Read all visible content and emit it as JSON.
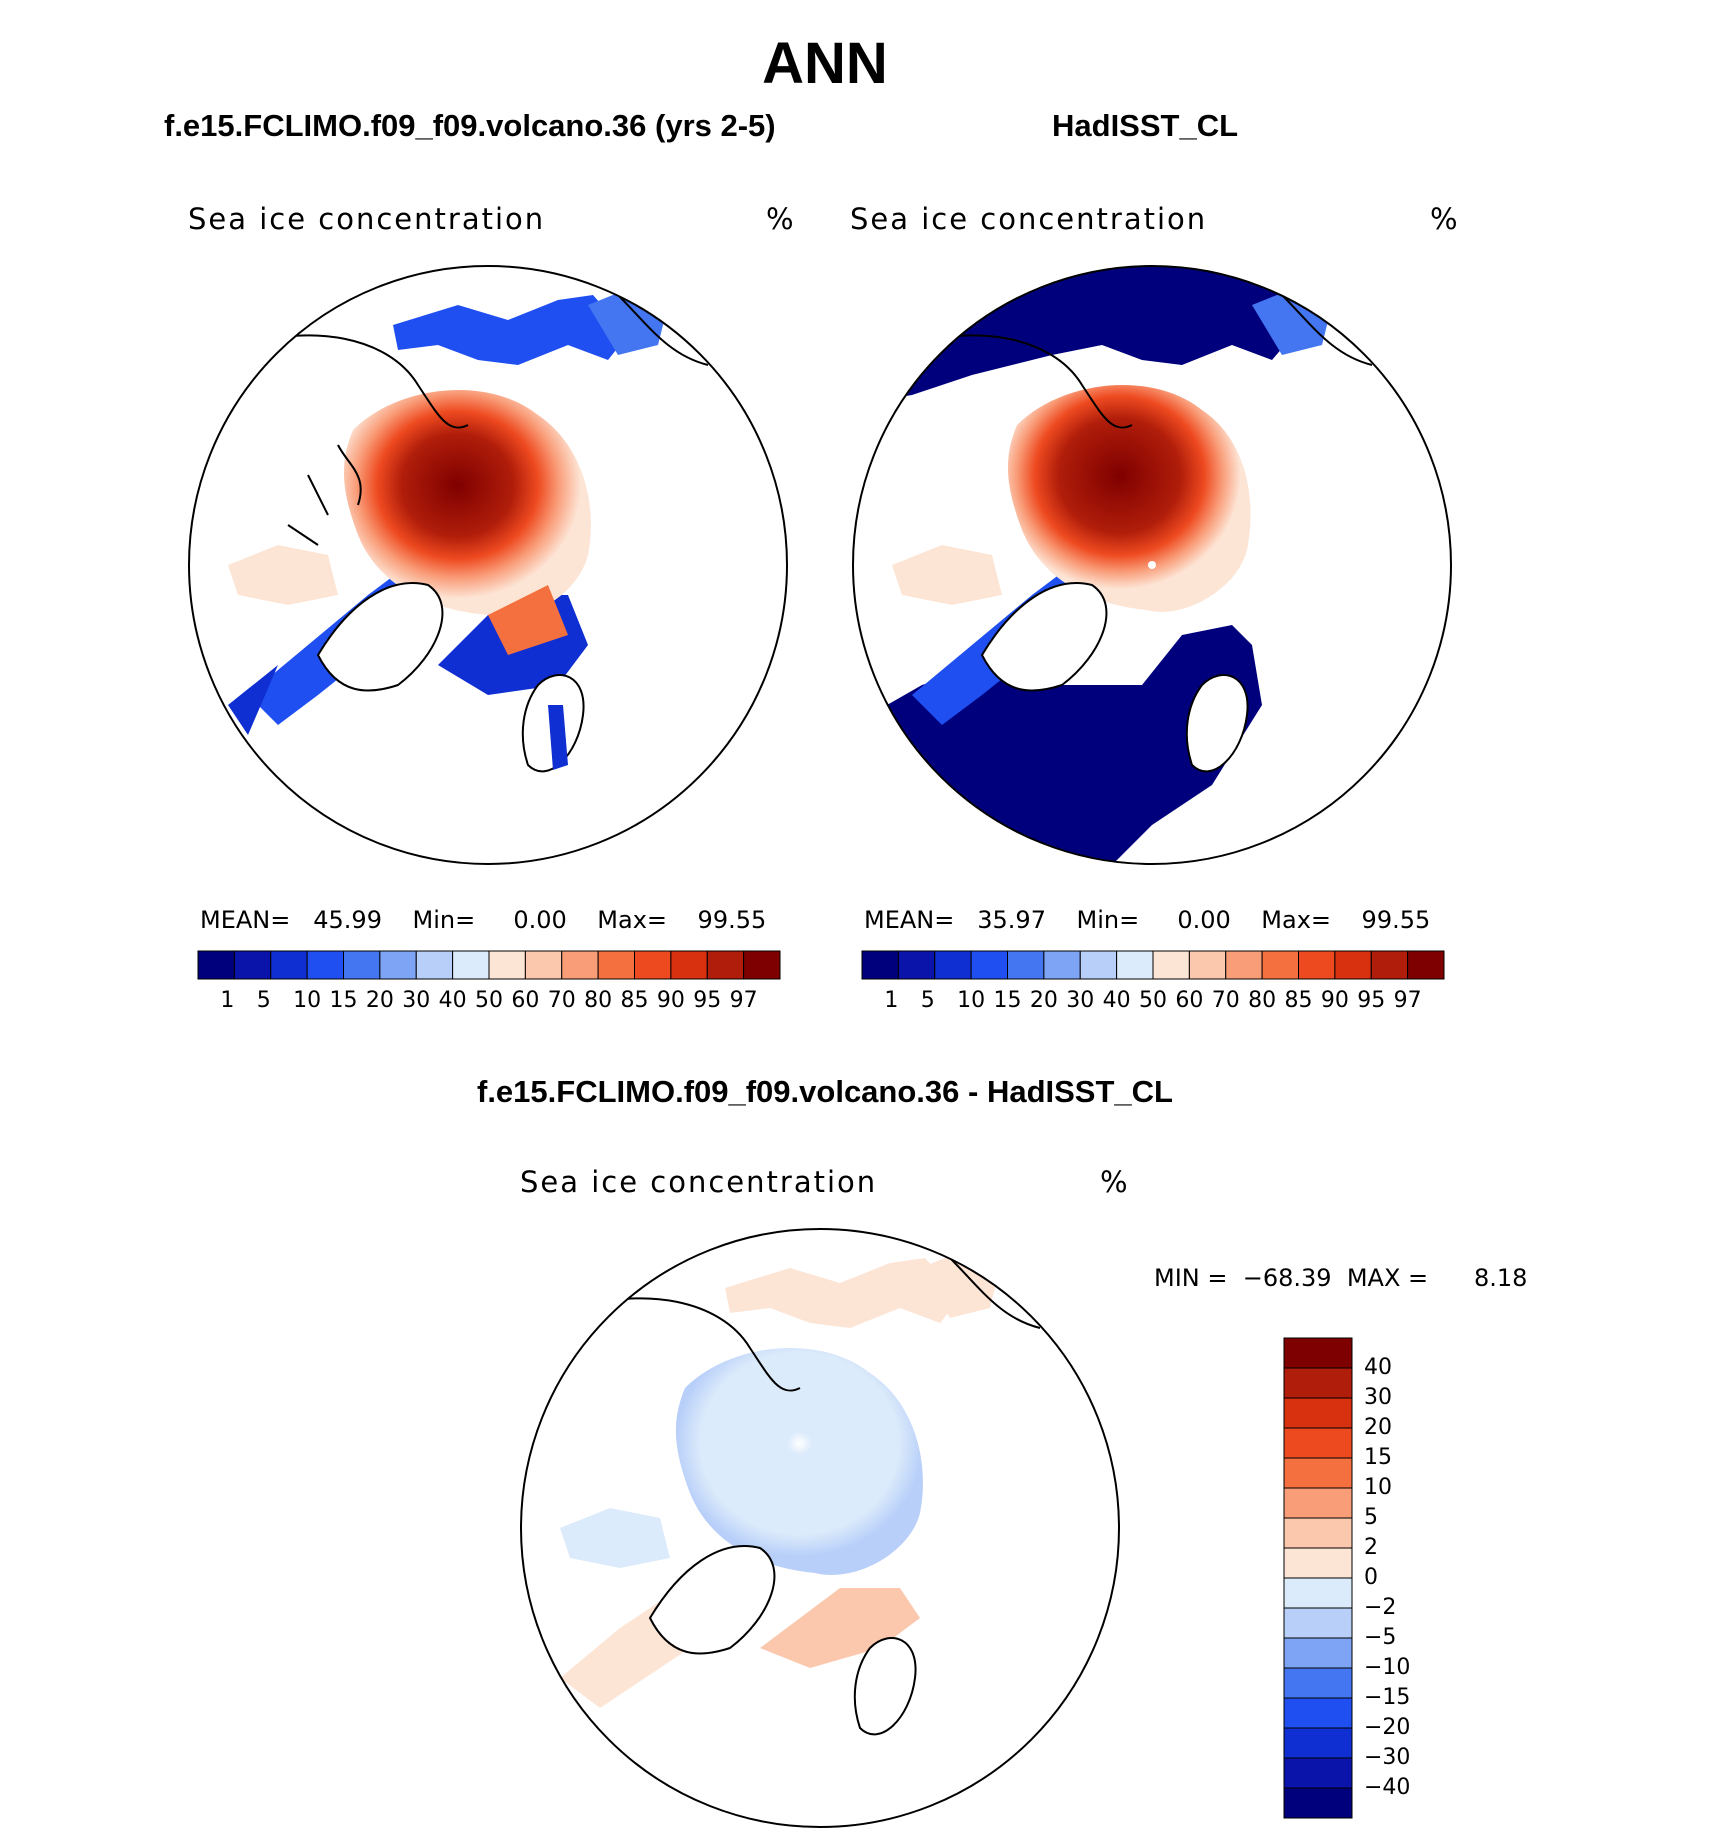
{
  "page_title": "ANN",
  "chart_data": [
    {
      "type": "heatmap",
      "projection": "north polar stereographic",
      "case_title": "f.e15.FCLIMO.f09_f09.volcano.36 (yrs 2-5)",
      "variable": "Sea ice concentration",
      "units": "%",
      "stats": {
        "mean_label": "MEAN=",
        "mean": "45.99",
        "min_label": "Min=",
        "min": "0.00",
        "max_label": "Max=",
        "max": "99.55"
      },
      "colorbar_levels": [
        "1",
        "5",
        "10",
        "15",
        "20",
        "30",
        "40",
        "50",
        "60",
        "70",
        "80",
        "85",
        "90",
        "95",
        "97"
      ],
      "central_arctic_value": 99.55,
      "marginal_sea_ice": "low concentration bands near edge"
    },
    {
      "type": "heatmap",
      "projection": "north polar stereographic",
      "case_title": "HadISST_CL",
      "variable": "Sea ice concentration",
      "units": "%",
      "stats": {
        "mean_label": "MEAN=",
        "mean": "35.97",
        "min_label": "Min=",
        "min": "0.00",
        "max_label": "Max=",
        "max": "99.55"
      },
      "colorbar_levels": [
        "1",
        "5",
        "10",
        "15",
        "20",
        "30",
        "40",
        "50",
        "60",
        "70",
        "80",
        "85",
        "90",
        "95",
        "97"
      ],
      "central_arctic_value": 99.55
    },
    {
      "type": "heatmap",
      "projection": "north polar stereographic",
      "case_title": "f.e15.FCLIMO.f09_f09.volcano.36 - HadISST_CL",
      "variable": "Sea ice concentration",
      "units": "%",
      "stats": {
        "min_label": "MIN =",
        "min": "−68.39",
        "max_label": "MAX =",
        "max": "8.18"
      },
      "colorbar_levels": [
        "40",
        "30",
        "20",
        "15",
        "10",
        "5",
        "2",
        "0",
        "−2",
        "−5",
        "−10",
        "−15",
        "−20",
        "−30",
        "−40"
      ]
    }
  ],
  "colors": {
    "main_palette": [
      "#00007d",
      "#0a14aa",
      "#0f2fd2",
      "#1f4ff0",
      "#4476f2",
      "#7ea4f5",
      "#b8cff9",
      "#dcebfb",
      "#fde5d6",
      "#fbc8ae",
      "#f99d79",
      "#f4703f",
      "#ee4a20",
      "#d7310f",
      "#b01d0a",
      "#7f0000"
    ],
    "diff_palette": [
      "#7f0000",
      "#b01d0a",
      "#d7310f",
      "#ee4a20",
      "#f4703f",
      "#f99d79",
      "#fbc8ae",
      "#fde5d6",
      "#dcebfb",
      "#b8cff9",
      "#7ea4f5",
      "#4476f2",
      "#1f4ff0",
      "#0f2fd2",
      "#0a14aa",
      "#00007d"
    ],
    "outline": "#000000"
  }
}
